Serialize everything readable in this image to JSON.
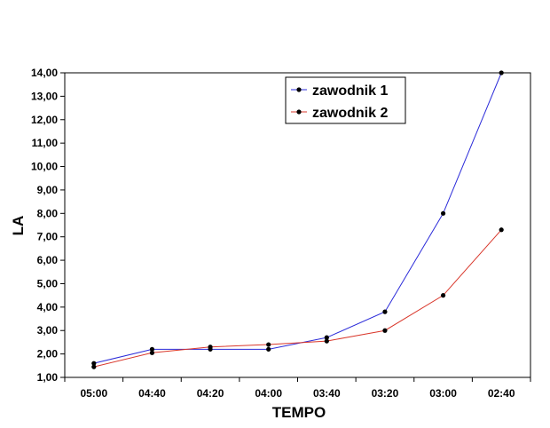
{
  "chart_data": {
    "type": "line",
    "xlabel": "TEMPO",
    "ylabel": "LA",
    "categories": [
      "05:00",
      "04:40",
      "04:20",
      "04:00",
      "03:40",
      "03:20",
      "03:00",
      "02:40"
    ],
    "ylim": [
      1,
      14
    ],
    "ytick_labels": [
      "1,00",
      "2,00",
      "3,00",
      "4,00",
      "5,00",
      "6,00",
      "7,00",
      "8,00",
      "9,00",
      "10,00",
      "11,00",
      "12,00",
      "13,00",
      "14,00"
    ],
    "grid": false,
    "legend_position": "top-right",
    "series": [
      {
        "name": "zawodnik 1",
        "color": "#2b2bd9",
        "values": [
          1.6,
          2.2,
          2.2,
          2.2,
          2.7,
          3.8,
          8.0,
          14.0
        ]
      },
      {
        "name": "zawodnik 2",
        "color": "#d9372b",
        "values": [
          1.45,
          2.05,
          2.3,
          2.4,
          2.55,
          3.0,
          4.5,
          7.3
        ]
      }
    ]
  }
}
